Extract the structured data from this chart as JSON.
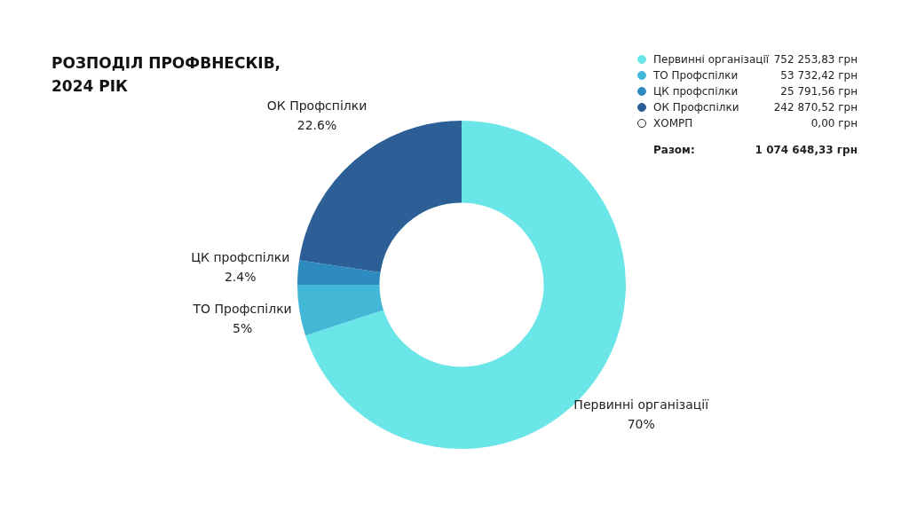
{
  "chart_data": {
    "type": "donut",
    "title": "РОЗПОДІЛ ПРОФВНЕСКІВ, 2024 РІК",
    "categories": [
      "Первинні організації",
      "ТО Профспілки",
      "ЦК профспілки",
      "ОК Профспілки",
      "ХОМРП"
    ],
    "values": [
      70,
      5,
      2.4,
      22.6,
      0
    ],
    "value_labels": [
      "70%",
      "5%",
      "2.4%",
      "22.6%",
      null
    ],
    "colors": [
      "#6ae6e8",
      "#42b8d6",
      "#2e8bbf",
      "#2c5f96",
      "#ffffff"
    ],
    "annotations": [
      "752 253,83 грн",
      "53 732,42 грн",
      "25 791,56 грн",
      "242 870,52 грн",
      "0,00 грн",
      "Разом:",
      "1 074 648,33 грн"
    ],
    "legend": "top right"
  }
}
